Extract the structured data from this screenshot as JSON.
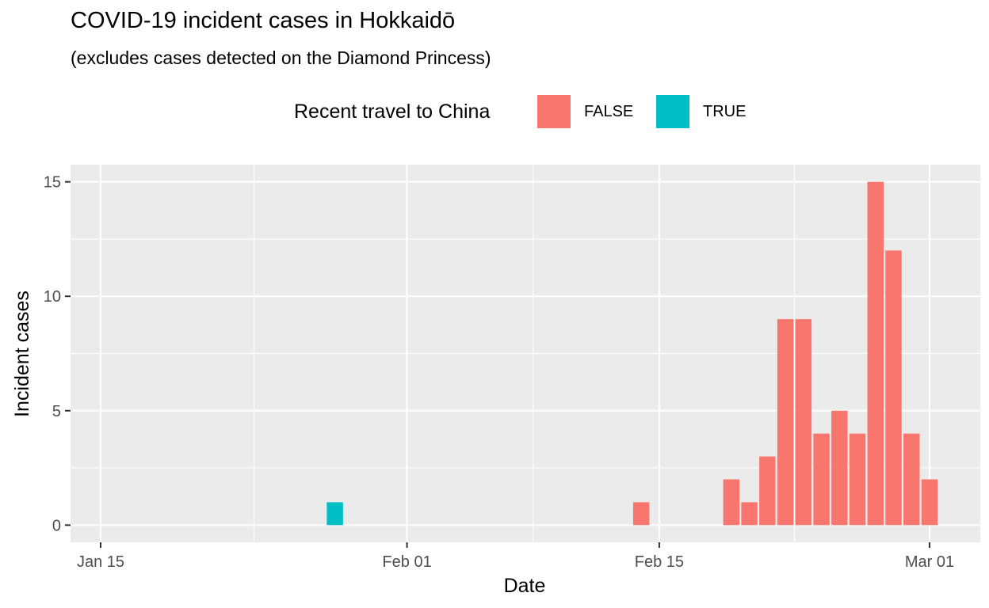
{
  "chart_data": {
    "type": "bar",
    "title": "COVID-19 incident cases in Hokkaidō",
    "subtitle": "(excludes cases detected on the Diamond Princess)",
    "xlabel": "Date",
    "ylabel": "Incident cases",
    "x_ticks": [
      {
        "date": "2020-01-15",
        "label": "Jan 15"
      },
      {
        "date": "2020-02-01",
        "label": "Feb 01"
      },
      {
        "date": "2020-02-15",
        "label": "Feb 15"
      },
      {
        "date": "2020-03-01",
        "label": "Mar 01"
      }
    ],
    "y_ticks": [
      0,
      5,
      10,
      15
    ],
    "xlim": [
      "2020-01-14",
      "2020-03-02"
    ],
    "ylim": [
      -0.75,
      15.75
    ],
    "grid": true,
    "legend": {
      "title": "Recent travel to China",
      "position": "top",
      "entries": [
        {
          "label": "FALSE",
          "color": "#F8766D"
        },
        {
          "label": "TRUE",
          "color": "#00BFC4"
        }
      ]
    },
    "bars": [
      {
        "date": "2020-01-28",
        "value": 1,
        "group": "TRUE"
      },
      {
        "date": "2020-02-14",
        "value": 1,
        "group": "FALSE"
      },
      {
        "date": "2020-02-19",
        "value": 2,
        "group": "FALSE"
      },
      {
        "date": "2020-02-20",
        "value": 1,
        "group": "FALSE"
      },
      {
        "date": "2020-02-21",
        "value": 3,
        "group": "FALSE"
      },
      {
        "date": "2020-02-22",
        "value": 9,
        "group": "FALSE"
      },
      {
        "date": "2020-02-23",
        "value": 9,
        "group": "FALSE"
      },
      {
        "date": "2020-02-24",
        "value": 4,
        "group": "FALSE"
      },
      {
        "date": "2020-02-25",
        "value": 5,
        "group": "FALSE"
      },
      {
        "date": "2020-02-26",
        "value": 4,
        "group": "FALSE"
      },
      {
        "date": "2020-02-27",
        "value": 15,
        "group": "FALSE"
      },
      {
        "date": "2020-02-28",
        "value": 12,
        "group": "FALSE"
      },
      {
        "date": "2020-02-29",
        "value": 4,
        "group": "FALSE"
      },
      {
        "date": "2020-03-01",
        "value": 2,
        "group": "FALSE"
      }
    ]
  }
}
